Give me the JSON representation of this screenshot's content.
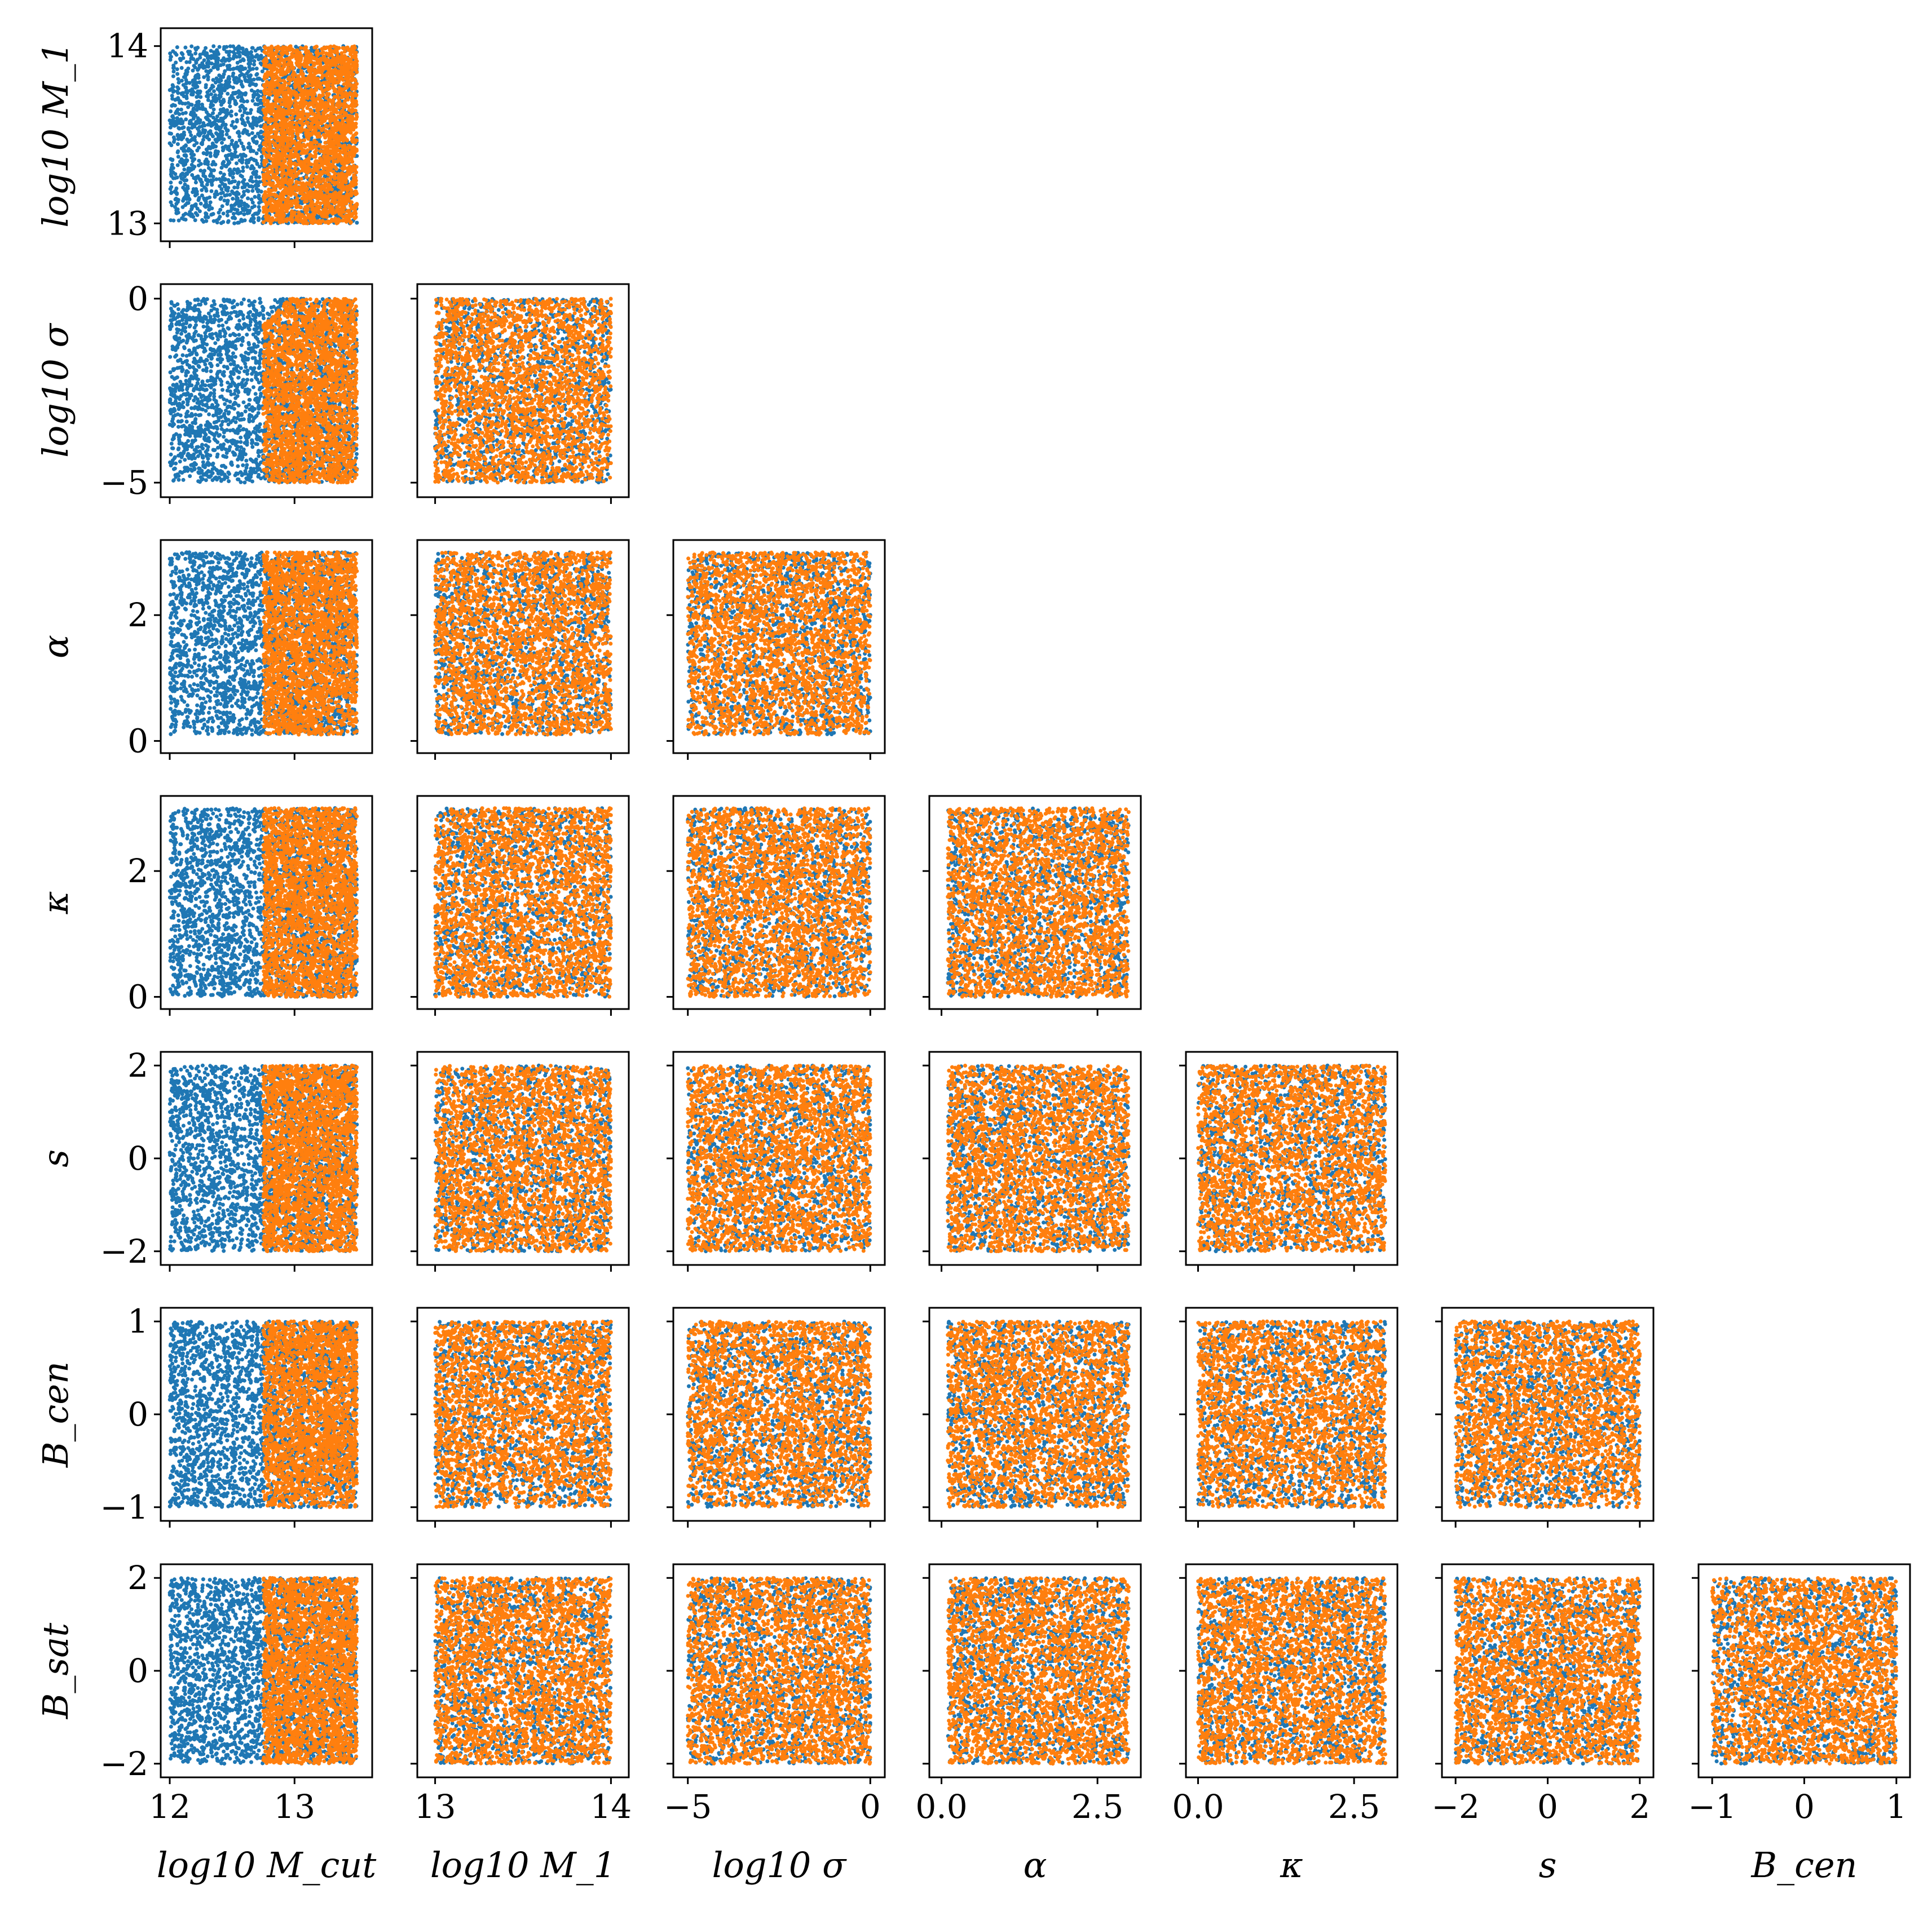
{
  "figure": {
    "colors": {
      "prior": "#1f77b4",
      "accepted": "#ff7f0e",
      "axes": "#000000",
      "background": "#ffffff"
    }
  },
  "chart_data": {
    "type": "scatter",
    "layout": "corner-pairplot (lower triangle)",
    "legend": "none",
    "grid": false,
    "parameters": [
      {
        "id": "log10Mcut",
        "label": "log10 M_cut",
        "range": [
          12,
          13.55
        ],
        "ticks": [
          12,
          13
        ],
        "tick_labels": [
          "12",
          "13"
        ]
      },
      {
        "id": "log10M1",
        "label": "log10 M_1",
        "range": [
          12.95,
          14.05
        ],
        "ticks": [
          13,
          14
        ],
        "tick_labels": [
          "13",
          "14"
        ]
      },
      {
        "id": "log10sigma",
        "label": "log10 σ",
        "range": [
          -5.15,
          0.15
        ],
        "ticks": [
          -5,
          0
        ],
        "tick_labels": [
          "−5",
          "0"
        ]
      },
      {
        "id": "alpha",
        "label": "α",
        "range": [
          -0.05,
          3.05
        ],
        "ticks": [
          0.0,
          2.5
        ],
        "tick_labels": [
          "0.0",
          "2.5"
        ],
        "y_ticks": [
          0,
          2
        ],
        "y_tick_labels": [
          "0",
          "2"
        ]
      },
      {
        "id": "kappa",
        "label": "κ",
        "range": [
          -0.05,
          3.05
        ],
        "ticks": [
          0.0,
          2.5
        ],
        "tick_labels": [
          "0.0",
          "2.5"
        ],
        "y_ticks": [
          0,
          2
        ],
        "y_tick_labels": [
          "0",
          "2"
        ]
      },
      {
        "id": "s",
        "label": "s",
        "range": [
          -2.1,
          2.1
        ],
        "ticks": [
          -2,
          0,
          2
        ],
        "tick_labels": [
          "−2",
          "0",
          "2"
        ]
      },
      {
        "id": "Bcen",
        "label": "B_cen",
        "range": [
          -1.05,
          1.05
        ],
        "ticks": [
          -1,
          0,
          1
        ],
        "tick_labels": [
          "−1",
          "0",
          "1"
        ]
      },
      {
        "id": "Bsat",
        "label": "B_sat",
        "range": [
          -2.1,
          2.1
        ],
        "ticks": [
          -2,
          0,
          2
        ],
        "tick_labels": [
          "−2",
          "0",
          "2"
        ]
      }
    ],
    "row_labels": [
      "log10 M_1",
      "log10 σ",
      "α",
      "κ",
      "s",
      "B_cen",
      "B_sat"
    ],
    "col_labels": [
      "log10 M_cut",
      "log10 M_1",
      "log10 σ",
      "α",
      "κ",
      "s",
      "B_cen"
    ],
    "series": [
      {
        "color": "#1f77b4",
        "sampling": "uniform over full prior box in every panel",
        "bounds": {
          "log10Mcut": [
            12.0,
            13.5
          ],
          "log10M1": [
            13.0,
            14.0
          ],
          "log10sigma": [
            -5.0,
            0.0
          ],
          "alpha": [
            0.1,
            3.0
          ],
          "kappa": [
            0.0,
            3.0
          ],
          "s": [
            -2.0,
            2.0
          ],
          "Bcen": [
            -1.0,
            1.0
          ],
          "Bsat": [
            -2.0,
            2.0
          ]
        }
      },
      {
        "color": "#ff7f0e",
        "sampling": "uniform, restricted in log10 M_cut (dense 12.75–13.5); weakly depleted near B_cen≈−1 and small α at high M_cut",
        "bounds": {
          "log10Mcut": [
            12.75,
            13.5
          ],
          "log10M1": [
            13.0,
            14.0
          ],
          "log10sigma": [
            -5.0,
            0.0
          ],
          "alpha": [
            0.1,
            3.0
          ],
          "kappa": [
            0.0,
            3.0
          ],
          "s": [
            -2.0,
            2.0
          ],
          "Bcen": [
            -1.0,
            1.0
          ],
          "Bsat": [
            -2.0,
            2.0
          ]
        },
        "points_per_panel_approx": 2600
      }
    ]
  }
}
